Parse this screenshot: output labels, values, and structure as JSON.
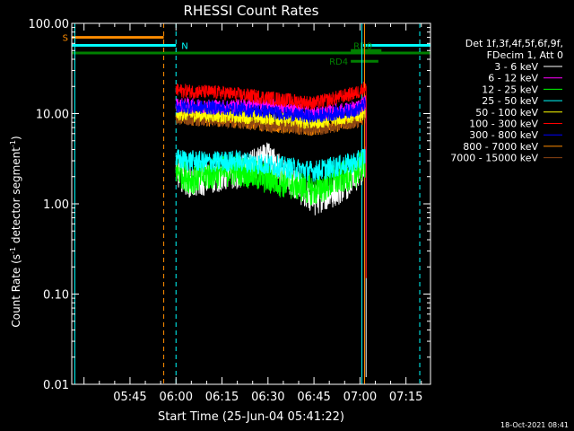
{
  "chart_data": {
    "type": "line",
    "title": "RHESSI Count Rates",
    "xlabel": "Start Time (25-Jun-04 05:41:22)",
    "ylabel": "Count Rate (s⁻¹ detector segment⁻¹)",
    "ylabel_main": "Count Rate (s",
    "ylabel_sup1": "-1",
    "ylabel_mid": " detector segment",
    "ylabel_sup2": "-1",
    "ylabel_end": ")",
    "y_scale": "log",
    "ylim": [
      0.01,
      100
    ],
    "xlim_minutes": [
      -19,
      98
    ],
    "x_tick_labels": [
      "05:45",
      "06:00",
      "06:15",
      "06:30",
      "06:45",
      "07:00",
      "07:15"
    ],
    "x_tick_minutes": [
      0,
      15,
      30,
      45,
      60,
      75,
      90
    ],
    "y_tick_labels": [
      "0.01",
      "0.10",
      "1.00",
      "10.00",
      "100.00"
    ],
    "y_tick_values": [
      0.01,
      0.1,
      1,
      10,
      100
    ],
    "legend_placement": "right",
    "legend_header": [
      "Det 1f,3f,4f,5f,6f,9f,",
      "FDecim 1, Att 0"
    ],
    "timestamp": "18-Oct-2021 08:41",
    "data_gap_minutes": [
      [
        -19,
        14
      ],
      [
        76,
        98
      ]
    ],
    "series": [
      {
        "name": "3 - 6 keV",
        "color": "#ffffff",
        "profile": [
          [
            15,
            2.3
          ],
          [
            20,
            1.7
          ],
          [
            28,
            2.0
          ],
          [
            35,
            2.2
          ],
          [
            45,
            3.2
          ],
          [
            55,
            1.5
          ],
          [
            60,
            1.1
          ],
          [
            67,
            1.4
          ],
          [
            74,
            2.0
          ],
          [
            77,
            2.8
          ]
        ]
      },
      {
        "name": "6 - 12 keV",
        "color": "#ff00ff",
        "profile": [
          [
            15,
            12.5
          ],
          [
            30,
            12.0
          ],
          [
            45,
            12.5
          ],
          [
            60,
            10.0
          ],
          [
            74,
            11.5
          ],
          [
            77,
            13.5
          ]
        ]
      },
      {
        "name": "12 - 25 keV",
        "color": "#00ff00",
        "profile": [
          [
            15,
            2.4
          ],
          [
            20,
            1.9
          ],
          [
            28,
            2.2
          ],
          [
            35,
            2.4
          ],
          [
            45,
            1.9
          ],
          [
            55,
            1.6
          ],
          [
            60,
            1.4
          ],
          [
            67,
            1.8
          ],
          [
            74,
            2.3
          ],
          [
            77,
            2.9
          ]
        ]
      },
      {
        "name": "25 - 50 keV",
        "color": "#00ffff",
        "profile": [
          [
            15,
            3.1
          ],
          [
            25,
            2.9
          ],
          [
            35,
            3.0
          ],
          [
            45,
            2.7
          ],
          [
            60,
            2.3
          ],
          [
            74,
            2.9
          ],
          [
            77,
            3.5
          ]
        ]
      },
      {
        "name": "50 - 100 keV",
        "color": "#ffff00",
        "profile": [
          [
            15,
            10.0
          ],
          [
            30,
            9.5
          ],
          [
            45,
            9.0
          ],
          [
            60,
            8.0
          ],
          [
            74,
            9.5
          ],
          [
            77,
            10.5
          ]
        ]
      },
      {
        "name": "100 - 300 keV",
        "color": "#ff0000",
        "profile": [
          [
            15,
            18.0
          ],
          [
            30,
            17.0
          ],
          [
            45,
            15.0
          ],
          [
            60,
            13.0
          ],
          [
            74,
            17.0
          ],
          [
            77,
            20.0
          ]
        ]
      },
      {
        "name": "300 - 800 keV",
        "color": "#0000ff",
        "profile": [
          [
            15,
            12.0
          ],
          [
            30,
            11.5
          ],
          [
            45,
            10.5
          ],
          [
            60,
            9.2
          ],
          [
            74,
            11.0
          ],
          [
            77,
            13.0
          ]
        ]
      },
      {
        "name": "800 - 7000 keV",
        "color": "#ff8c00",
        "profile": [
          [
            15,
            9.0
          ],
          [
            30,
            8.5
          ],
          [
            45,
            7.5
          ],
          [
            60,
            6.8
          ],
          [
            74,
            8.2
          ],
          [
            77,
            9.5
          ]
        ]
      },
      {
        "name": "7000 - 15000 keV",
        "color": "#8b4513",
        "profile": [
          [
            15,
            9.0
          ],
          [
            30,
            8.5
          ],
          [
            45,
            7.5
          ],
          [
            60,
            6.8
          ],
          [
            74,
            8.2
          ],
          [
            77,
            9.5
          ]
        ]
      }
    ],
    "flags": [
      {
        "label": "S",
        "color": "#ff8c00",
        "y": 70,
        "start": -19,
        "end": 11
      },
      {
        "label": "N",
        "color": "#00ffff",
        "y": 57,
        "start": -19,
        "end": 15,
        "label2_start": 76,
        "end2": 98
      },
      {
        "label": "",
        "color": "#008000",
        "y": 47,
        "start": -19,
        "end": 98
      },
      {
        "label": "RD0",
        "color": "#008000",
        "y": 50,
        "start": 72,
        "end": 82
      },
      {
        "label": "RD4",
        "color": "#008000",
        "y": 38,
        "start": 72,
        "end": 81
      }
    ],
    "vlines": [
      {
        "x": -18,
        "color": "#00ffff",
        "style": "solid"
      },
      {
        "x": 11,
        "color": "#ff8c00",
        "style": "dashed"
      },
      {
        "x": 15,
        "color": "#00ffff",
        "style": "dashed"
      },
      {
        "x": 75.6,
        "color": "#00ffff",
        "style": "solid"
      },
      {
        "x": 76.5,
        "color": "#ff8c00",
        "style": "solid"
      },
      {
        "x": 94.5,
        "color": "#00ffff",
        "style": "dashed"
      }
    ]
  }
}
